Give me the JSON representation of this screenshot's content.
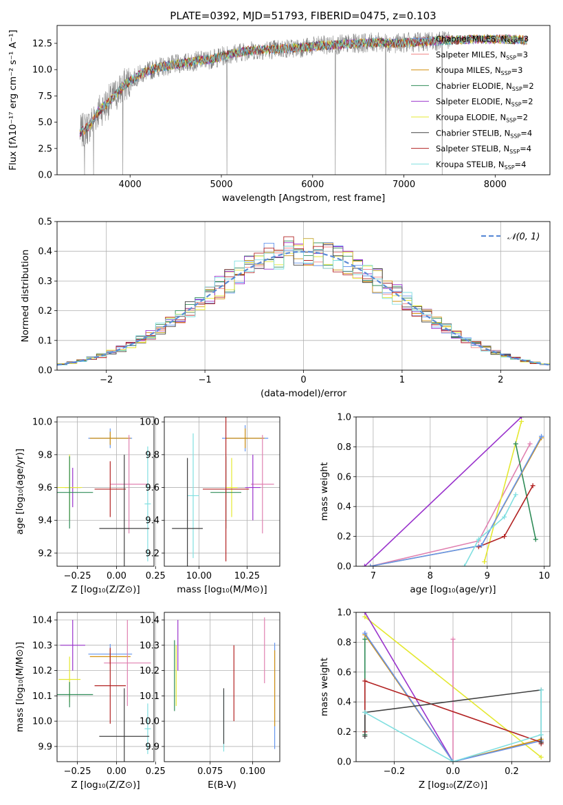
{
  "figure_title": "PLATE=0392, MJD=51793, FIBERID=0475, z=0.103",
  "chart_data": [
    {
      "id": "spectrum",
      "type": "line",
      "title": "PLATE=0392, MJD=51793, FIBERID=0475, z=0.103",
      "xlabel": "wavelength [Angstrom, rest frame]",
      "ylabel": "Flux [fλ10⁻¹⁷ erg cm⁻² s⁻¹ A⁻¹]",
      "xlim": [
        3200,
        8600
      ],
      "ylim": [
        0,
        14.2
      ],
      "xticks": [
        4000,
        5000,
        6000,
        7000,
        8000
      ],
      "yticks": [
        0.0,
        2.5,
        5.0,
        7.5,
        10.0,
        12.5
      ],
      "legend_position": "right",
      "legend": [
        {
          "label": "Chabrier MILES, N_SSP=3",
          "color": "#6495ed"
        },
        {
          "label": "Salpeter MILES, N_SSP=3",
          "color": "#f08080"
        },
        {
          "label": "Kroupa MILES, N_SSP=3",
          "color": "#d2900f"
        },
        {
          "label": "Chabrier ELODIE, N_SSP=2",
          "color": "#2e8b57"
        },
        {
          "label": "Salpeter ELODIE, N_SSP=2",
          "color": "#9932cc"
        },
        {
          "label": "Kroupa ELODIE, N_SSP=2",
          "color": "#e4e830"
        },
        {
          "label": "Chabrier STELIB, N_SSP=4",
          "color": "#404040"
        },
        {
          "label": "Salpeter STELIB, N_SSP=4",
          "color": "#b22222"
        },
        {
          "label": "Kroupa STELIB, N_SSP=4",
          "color": "#80dfe0"
        }
      ],
      "continuum": [
        [
          3450,
          4.0
        ],
        [
          3550,
          4.6
        ],
        [
          3650,
          6.0
        ],
        [
          3800,
          7.2
        ],
        [
          3950,
          8.6
        ],
        [
          4100,
          9.5
        ],
        [
          4300,
          10.2
        ],
        [
          4500,
          10.5
        ],
        [
          4700,
          10.8
        ],
        [
          4900,
          11.0
        ],
        [
          5100,
          11.5
        ],
        [
          5300,
          11.8
        ],
        [
          5500,
          11.9
        ],
        [
          5700,
          12.0
        ],
        [
          5900,
          12.1
        ],
        [
          6100,
          12.3
        ],
        [
          6300,
          12.4
        ],
        [
          6500,
          12.5
        ],
        [
          6700,
          12.6
        ],
        [
          6900,
          12.5
        ],
        [
          7100,
          12.6
        ],
        [
          7300,
          12.7
        ],
        [
          7500,
          12.8
        ],
        [
          7800,
          12.9
        ],
        [
          8100,
          12.9
        ],
        [
          8350,
          12.8
        ]
      ],
      "dropouts": [
        3500,
        3600,
        3920,
        5060,
        6250,
        6800,
        7420
      ]
    },
    {
      "id": "residuals",
      "type": "line",
      "xlabel": "(data-model)/error",
      "ylabel": "Normed distribution",
      "xlim": [
        -2.5,
        2.5
      ],
      "ylim": [
        0,
        0.5
      ],
      "xticks": [
        -2,
        -1,
        0,
        1,
        2
      ],
      "yticks": [
        0.0,
        0.1,
        0.2,
        0.3,
        0.4,
        0.5
      ],
      "legend_position": "top-right",
      "legend": [
        {
          "label": "𝒩(0, 1)",
          "color": "#5b8bd6"
        }
      ],
      "gaussian": {
        "mean": 0,
        "sigma": 1
      },
      "bin_width": 0.1
    },
    {
      "id": "age-vs-Z",
      "type": "scatter",
      "xlabel": "Z [log₁₀(Z/Z⊙)]",
      "ylabel": "age  [log₁₀(age/yr)]",
      "xlim": [
        -0.38,
        0.24
      ],
      "ylim": [
        9.12,
        10.03
      ],
      "xticks": [
        -0.25,
        0.0,
        0.25
      ],
      "xtick_labels": [
        "−0.25",
        "0.00",
        "0.25"
      ],
      "yticks": [
        9.2,
        9.4,
        9.6,
        9.8,
        10.0
      ],
      "points": [
        {
          "x": -0.04,
          "xerr": 0.14,
          "y": 9.9,
          "yerr": 0.06,
          "color": "#6495ed"
        },
        {
          "x": -0.04,
          "xerr": 0.13,
          "y": 9.9,
          "yerr": 0.04,
          "color": "#d2900f"
        },
        {
          "x": 0.08,
          "xerr": 0.12,
          "y": 9.62,
          "yerr": 0.3,
          "color": "#e080b0"
        },
        {
          "x": -0.28,
          "xerr": 0.05,
          "y": 9.6,
          "yerr": 0.12,
          "color": "#9932cc"
        },
        {
          "x": -0.3,
          "xerr": 0.08,
          "y": 9.6,
          "yerr": 0.2,
          "color": "#e4e830"
        },
        {
          "x": -0.3,
          "xerr": 0.15,
          "y": 9.57,
          "yerr": 0.22,
          "color": "#2e8b57"
        },
        {
          "x": -0.04,
          "xerr": 0.1,
          "y": 9.59,
          "yerr": 0.17,
          "color": "#b22222"
        },
        {
          "x": 0.2,
          "xerr": 0.02,
          "y": 9.5,
          "yerr": 0.35,
          "color": "#80dfe0"
        },
        {
          "x": 0.05,
          "xerr": 0.16,
          "y": 9.35,
          "yerr": 0.45,
          "color": "#404040"
        }
      ]
    },
    {
      "id": "age-vs-mass",
      "type": "scatter",
      "xlabel": "mass [log₁₀(M/M⊙)]",
      "xlim": [
        9.82,
        10.42
      ],
      "ylim": [
        9.12,
        10.03
      ],
      "xticks": [
        10.0,
        10.25
      ],
      "xtick_labels": [
        "10.00",
        "10.25"
      ],
      "yticks": [
        9.2,
        9.4,
        9.6,
        9.8,
        10.0
      ],
      "points": [
        {
          "x": 10.24,
          "xerr": 0.12,
          "y": 9.9,
          "yerr": 0.08,
          "color": "#6495ed"
        },
        {
          "x": 10.24,
          "xerr": 0.1,
          "y": 9.9,
          "yerr": 0.06,
          "color": "#d2900f"
        },
        {
          "x": 10.33,
          "xerr": 0.06,
          "y": 9.62,
          "yerr": 0.3,
          "color": "#e080b0"
        },
        {
          "x": 10.28,
          "xerr": 0.04,
          "y": 9.6,
          "yerr": 0.2,
          "color": "#9932cc"
        },
        {
          "x": 10.17,
          "xerr": 0.03,
          "y": 9.6,
          "yerr": 0.18,
          "color": "#e4e830"
        },
        {
          "x": 10.14,
          "xerr": 0.08,
          "y": 9.57,
          "yerr": 0.22,
          "color": "#2e8b57"
        },
        {
          "x": 10.14,
          "xerr": 0.12,
          "y": 9.59,
          "yerr": 0.44,
          "color": "#b22222"
        },
        {
          "x": 9.97,
          "xerr": 0.03,
          "y": 9.55,
          "yerr": 0.38,
          "color": "#80dfe0"
        },
        {
          "x": 9.94,
          "xerr": 0.08,
          "y": 9.35,
          "yerr": 0.43,
          "color": "#404040"
        }
      ]
    },
    {
      "id": "weight-vs-age",
      "type": "line",
      "xlabel": "age  [log₁₀(age/yr)]",
      "ylabel": "mass weight",
      "xlim": [
        6.7,
        10.1
      ],
      "ylim": [
        0,
        1
      ],
      "xticks": [
        7,
        8,
        9,
        10
      ],
      "yticks": [
        0.0,
        0.2,
        0.4,
        0.6,
        0.8,
        1.0
      ],
      "series": [
        {
          "color": "#9932cc",
          "x": [
            6.85,
            9.6
          ],
          "y": [
            0.0,
            1.0
          ]
        },
        {
          "color": "#e080b0",
          "x": [
            6.95,
            8.85,
            9.75
          ],
          "y": [
            0.0,
            0.17,
            0.82
          ]
        },
        {
          "color": "#e4e830",
          "x": [
            8.95,
            9.6
          ],
          "y": [
            0.03,
            0.97
          ]
        },
        {
          "color": "#2e8b57",
          "x": [
            9.5,
            9.85
          ],
          "y": [
            0.82,
            0.18
          ]
        },
        {
          "color": "#b22222",
          "x": [
            8.85,
            9.3,
            9.8
          ],
          "y": [
            0.13,
            0.2,
            0.54
          ]
        },
        {
          "color": "#d2900f",
          "x": [
            6.95,
            8.9,
            9.95
          ],
          "y": [
            0.0,
            0.14,
            0.86
          ]
        },
        {
          "color": "#6495ed",
          "x": [
            6.95,
            8.9,
            9.95
          ],
          "y": [
            0.0,
            0.14,
            0.87
          ]
        },
        {
          "color": "#80dfe0",
          "x": [
            8.6,
            8.85,
            9.3,
            9.5
          ],
          "y": [
            0.0,
            0.18,
            0.33,
            0.48
          ]
        }
      ]
    },
    {
      "id": "mass-vs-Z",
      "type": "scatter",
      "xlabel": "Z [log₁₀(Z/Z⊙)]",
      "ylabel": "mass [log₁₀(M/M⊙)]",
      "xlim": [
        -0.38,
        0.24
      ],
      "ylim": [
        9.84,
        10.43
      ],
      "xticks": [
        -0.25,
        0.0,
        0.25
      ],
      "xtick_labels": [
        "−0.25",
        "0.00",
        "0.25"
      ],
      "yticks": [
        9.9,
        10.0,
        10.1,
        10.2,
        10.3,
        10.4
      ],
      "points": [
        {
          "x": -0.04,
          "xerr": 0.14,
          "y": 10.265,
          "yerr": 0.04,
          "color": "#6495ed"
        },
        {
          "x": -0.04,
          "xerr": 0.13,
          "y": 10.255,
          "yerr": 0.03,
          "color": "#d2900f"
        },
        {
          "x": 0.07,
          "xerr": 0.15,
          "y": 10.23,
          "yerr": 0.17,
          "color": "#e080b0"
        },
        {
          "x": -0.28,
          "xerr": 0.08,
          "y": 10.3,
          "yerr": 0.1,
          "color": "#9932cc"
        },
        {
          "x": -0.3,
          "xerr": 0.07,
          "y": 10.165,
          "yerr": 0.09,
          "color": "#e4e830"
        },
        {
          "x": -0.3,
          "xerr": 0.15,
          "y": 10.105,
          "yerr": 0.05,
          "color": "#2e8b57"
        },
        {
          "x": -0.04,
          "xerr": 0.1,
          "y": 10.14,
          "yerr": 0.15,
          "color": "#b22222"
        },
        {
          "x": 0.2,
          "xerr": 0.02,
          "y": 9.97,
          "yerr": 0.1,
          "color": "#80dfe0"
        },
        {
          "x": 0.05,
          "xerr": 0.16,
          "y": 9.94,
          "yerr": 0.19,
          "color": "#404040"
        }
      ]
    },
    {
      "id": "mass-vs-ebv",
      "type": "scatter",
      "xlabel": "E(B-V)",
      "xlim": [
        0.048,
        0.116
      ],
      "ylim": [
        9.84,
        10.43
      ],
      "xticks": [
        0.075,
        0.1
      ],
      "xtick_labels": [
        "0.075",
        "0.100"
      ],
      "yticks": [
        9.9,
        10.0,
        10.1,
        10.2,
        10.3,
        10.4
      ],
      "points": [
        {
          "x": 0.113,
          "y": 10.1,
          "yerr": 0.21,
          "color": "#6495ed"
        },
        {
          "x": 0.113,
          "y": 10.13,
          "yerr": 0.15,
          "color": "#d2900f"
        },
        {
          "x": 0.107,
          "y": 10.28,
          "yerr": 0.13,
          "color": "#e080b0"
        },
        {
          "x": 0.056,
          "y": 10.3,
          "yerr": 0.1,
          "color": "#9932cc"
        },
        {
          "x": 0.055,
          "y": 10.18,
          "yerr": 0.12,
          "color": "#e4e830"
        },
        {
          "x": 0.054,
          "y": 10.18,
          "yerr": 0.14,
          "color": "#2e8b57"
        },
        {
          "x": 0.089,
          "y": 10.15,
          "yerr": 0.15,
          "color": "#b22222"
        },
        {
          "x": 0.083,
          "y": 10.0,
          "yerr": 0.12,
          "color": "#80dfe0"
        },
        {
          "x": 0.083,
          "y": 10.02,
          "yerr": 0.11,
          "color": "#404040"
        }
      ]
    },
    {
      "id": "weight-vs-Z",
      "type": "line",
      "xlabel": "Z [log₁₀(Z/Z⊙)]",
      "ylabel": "mass weight",
      "xlim": [
        -0.33,
        0.33
      ],
      "ylim": [
        0,
        1
      ],
      "xticks": [
        -0.2,
        0.0,
        0.2
      ],
      "xtick_labels": [
        "−0.2",
        "0.0",
        "0.2"
      ],
      "yticks": [
        0.0,
        0.2,
        0.4,
        0.6,
        0.8,
        1.0
      ],
      "series": [
        {
          "color": "#e4e830",
          "x": [
            -0.3,
            0.3
          ],
          "y": [
            0.97,
            0.03
          ]
        },
        {
          "color": "#9932cc",
          "x": [
            -0.3,
            0.0
          ],
          "y": [
            1.0,
            0.0
          ]
        },
        {
          "color": "#e080b0",
          "x": [
            -0.3,
            0.0,
            0.0,
            0.0,
            0.3
          ],
          "y": [
            0.86,
            0.0,
            0.82,
            0.0,
            0.14
          ]
        },
        {
          "color": "#d2900f",
          "x": [
            -0.3,
            0.0,
            0.3
          ],
          "y": [
            0.85,
            0.0,
            0.15
          ]
        },
        {
          "color": "#6495ed",
          "x": [
            -0.3,
            0.0,
            0.3
          ],
          "y": [
            0.86,
            0.0,
            0.14
          ]
        },
        {
          "color": "#2e8b57",
          "x": [
            -0.3,
            -0.3
          ],
          "y": [
            0.82,
            0.18
          ]
        },
        {
          "color": "#b22222",
          "x": [
            -0.3,
            -0.3,
            0.3,
            0.3
          ],
          "y": [
            0.2,
            0.54,
            0.13,
            0.12
          ]
        },
        {
          "color": "#404040",
          "x": [
            -0.3,
            -0.3,
            0.3,
            0.3
          ],
          "y": [
            0.17,
            0.33,
            0.48,
            0.13
          ]
        },
        {
          "color": "#80dfe0",
          "x": [
            -0.3,
            0.0,
            0.3,
            0.3
          ],
          "y": [
            0.33,
            0.0,
            0.18,
            0.48
          ]
        }
      ]
    }
  ]
}
